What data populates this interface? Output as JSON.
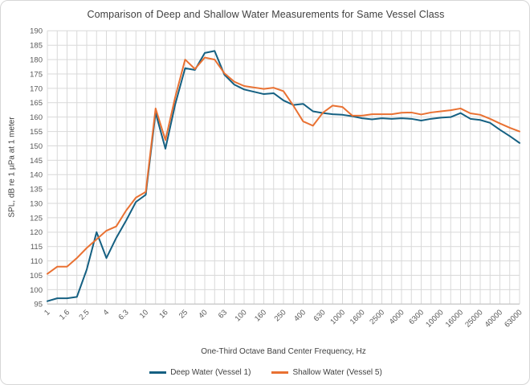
{
  "chart_data": {
    "type": "line",
    "title": "Comparison of Deep and Shallow Water Measurements for Same Vessel Class",
    "xlabel": "One-Third Octave Band Center Frequency, Hz",
    "ylabel": "SPL, dB re 1 µPa at 1 meter",
    "ylim": [
      95,
      190
    ],
    "ytick_step": 5,
    "grid": true,
    "legend_position": "bottom",
    "categories": [
      1,
      1.25,
      1.6,
      2,
      2.5,
      3.15,
      4,
      5,
      6.3,
      8,
      10,
      12.5,
      16,
      20,
      25,
      31.5,
      40,
      50,
      63,
      80,
      100,
      125,
      160,
      200,
      250,
      315,
      400,
      500,
      630,
      800,
      1000,
      1250,
      1600,
      2000,
      2500,
      3150,
      4000,
      5000,
      6300,
      8000,
      10000,
      12500,
      16000,
      20000,
      25000,
      31500,
      40000,
      50000,
      63000
    ],
    "xtick_labels": [
      "1",
      "1.6",
      "2.5",
      "4",
      "6.3",
      "10",
      "16",
      "25",
      "40",
      "63",
      "100",
      "160",
      "250",
      "400",
      "630",
      "1000",
      "1600",
      "2500",
      "4000",
      "6300",
      "10000",
      "16000",
      "25000",
      "40000",
      "63000"
    ],
    "xtick_every": 2,
    "series": [
      {
        "name": "Deep Water (Vessel 1)",
        "color": "#156082",
        "values": [
          96,
          97,
          97,
          97.5,
          107,
          120,
          111,
          118,
          124,
          130.5,
          133,
          161.5,
          149,
          164.5,
          177,
          176.4,
          182.3,
          183,
          174.7,
          171.3,
          169.6,
          168.8,
          168,
          168.3,
          165.8,
          164.2,
          164.6,
          162,
          161.4,
          161,
          160.8,
          160.3,
          159.6,
          159.2,
          159.6,
          159.4,
          159.6,
          159.4,
          158.8,
          159.4,
          159.8,
          160,
          161.4,
          159.4,
          159,
          158,
          155.6,
          153.4,
          151
        ]
      },
      {
        "name": "Shallow Water (Vessel 5)",
        "color": "#E97132",
        "values": [
          105.5,
          108,
          108,
          111,
          114.5,
          117.5,
          120.5,
          122,
          127.5,
          132,
          134,
          163,
          152,
          167,
          180,
          176.7,
          180.7,
          180,
          175.2,
          172.3,
          170.8,
          170.3,
          169.8,
          170.2,
          169,
          164,
          158.5,
          157,
          161.5,
          164,
          163.5,
          160.5,
          160.5,
          161,
          161,
          161,
          161.5,
          161.6,
          160.9,
          161.6,
          162,
          162.4,
          163,
          161.3,
          160.8,
          159.4,
          157.8,
          156.3,
          155
        ]
      }
    ],
    "colors": {
      "gridline": "#d9d9d9",
      "axis_line": "#bfbfbf",
      "tick_text": "#595959",
      "title_text": "#404040"
    }
  }
}
